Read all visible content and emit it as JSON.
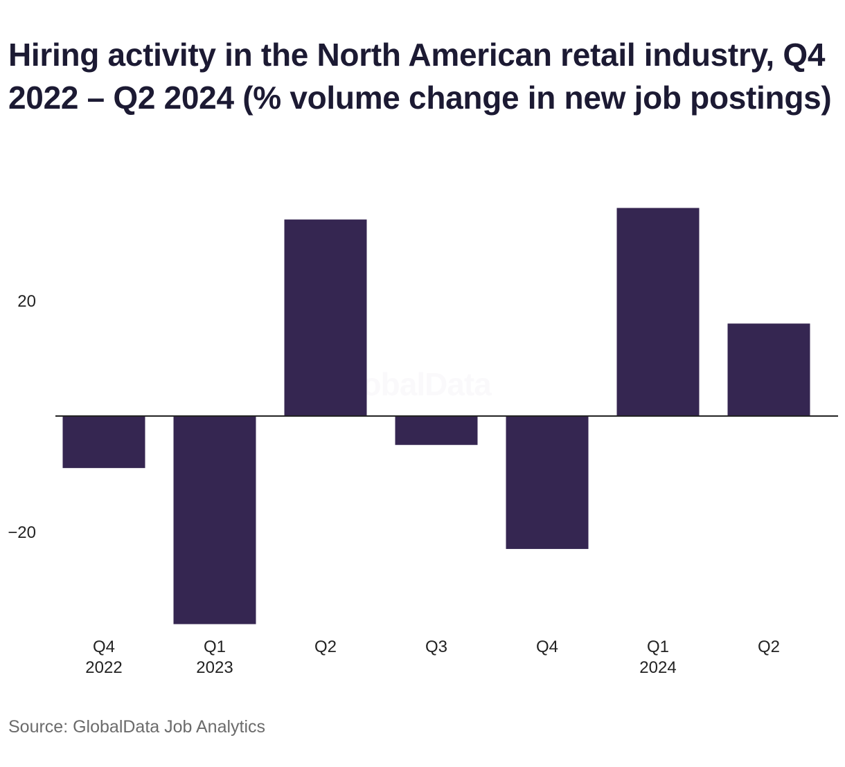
{
  "title": "Hiring activity in the North American retail industry, Q4 2022 – Q2 2024 (% volume change in new job postings)",
  "source": "Source: GlobalData Job Analytics",
  "watermark": "GlobalData",
  "colors": {
    "bar": "#352651",
    "axis": "#222222",
    "text": "#1c1a33"
  },
  "chart_data": {
    "type": "bar",
    "title": "Hiring activity in the North American retail industry, Q4 2022 – Q2 2024 (% volume change in new job postings)",
    "categories": [
      {
        "quarter": "Q4",
        "year": "2022"
      },
      {
        "quarter": "Q1",
        "year": "2023"
      },
      {
        "quarter": "Q2",
        "year": ""
      },
      {
        "quarter": "Q3",
        "year": ""
      },
      {
        "quarter": "Q4",
        "year": ""
      },
      {
        "quarter": "Q1",
        "year": "2024"
      },
      {
        "quarter": "Q2",
        "year": ""
      }
    ],
    "values": [
      -9,
      -36,
      34,
      -5,
      -23,
      36,
      16
    ],
    "yticks": [
      {
        "value": 20,
        "label": "20"
      },
      {
        "value": -20,
        "label": "−20"
      }
    ],
    "ylim": [
      -40,
      40
    ],
    "grid": false,
    "legend": "none",
    "xlabel": "",
    "ylabel": ""
  }
}
